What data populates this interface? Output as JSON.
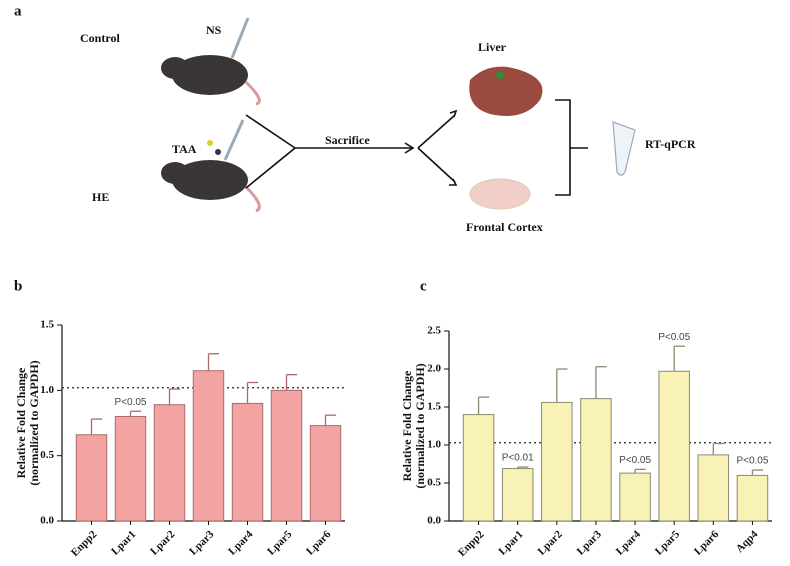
{
  "panels": {
    "a": "a",
    "b": "b",
    "c": "c"
  },
  "diagram": {
    "control": "Control",
    "ns": "NS",
    "taa": "TAA",
    "he": "HE",
    "sacrifice": "Sacrifice",
    "liver": "Liver",
    "cortex": "Frontal Cortex",
    "assay": "RT-qPCR"
  },
  "chart_data": [
    {
      "type": "bar",
      "ylabel": [
        "Relative Fold Change",
        "(normalized to GAPDH)"
      ],
      "categories": [
        "Enpp2",
        "Lpar1",
        "Lpar2",
        "Lpar3",
        "Lpar4",
        "Lpar5",
        "Lpar6"
      ],
      "values": [
        0.66,
        0.8,
        0.89,
        1.15,
        0.9,
        1.0,
        0.73
      ],
      "errors": [
        0.12,
        0.04,
        0.12,
        0.13,
        0.16,
        0.12,
        0.08
      ],
      "annotations": [
        null,
        "P<0.05",
        null,
        null,
        null,
        null,
        null
      ],
      "color": "#f4a3a3",
      "edge": "#a86a6a",
      "reference_line": 1.02,
      "ylim": [
        0,
        1.5
      ],
      "yticks": [
        {
          "value": 0,
          "label": "0.0"
        },
        {
          "value": 0.5,
          "label": "0.5"
        },
        {
          "value": 1,
          "label": "1.0"
        },
        {
          "value": 1.5,
          "label": "1.5"
        }
      ]
    },
    {
      "type": "bar",
      "ylabel": [
        "Relative Fold Change",
        "(normalized to GAPDH)"
      ],
      "categories": [
        "Enpp2",
        "Lpar1",
        "Lpar2",
        "Lpar3",
        "Lpar4",
        "Lpar5",
        "Lpar6",
        "Aqp4"
      ],
      "values": [
        1.4,
        0.69,
        1.56,
        1.61,
        0.63,
        1.97,
        0.87,
        0.6
      ],
      "errors": [
        0.23,
        0.02,
        0.44,
        0.42,
        0.05,
        0.33,
        0.15,
        0.07
      ],
      "annotations": [
        null,
        "P<0.01",
        null,
        null,
        "P<0.05",
        "P<0.05",
        null,
        "P<0.05"
      ],
      "color": "#f8f2b6",
      "edge": "#8a8a70",
      "reference_line": 1.03,
      "ylim": [
        0,
        2.5
      ],
      "yticks": [
        {
          "value": 0,
          "label": "0.0"
        },
        {
          "value": 0.5,
          "label": "0.5"
        },
        {
          "value": 1,
          "label": "1.0"
        },
        {
          "value": 1.5,
          "label": "1.5"
        },
        {
          "value": 2,
          "label": "2.0"
        },
        {
          "value": 2.5,
          "label": "2.5"
        }
      ]
    }
  ]
}
